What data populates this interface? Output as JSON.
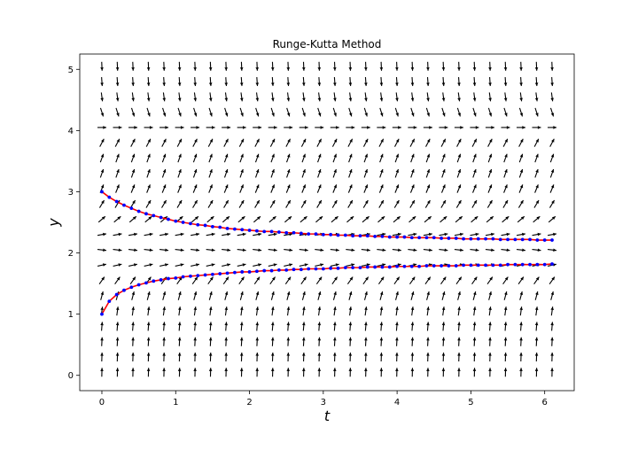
{
  "chart_data": {
    "type": "line",
    "title": "Runge-Kutta Method",
    "xlabel": "t",
    "ylabel": "y",
    "xlim": [
      -0.3,
      6.4
    ],
    "ylim": [
      -0.25,
      5.25
    ],
    "xticks": [
      0,
      1,
      2,
      3,
      4,
      5,
      6
    ],
    "yticks": [
      0,
      1,
      2,
      3,
      4,
      5
    ],
    "grid": false,
    "direction_field": {
      "t_range": [
        0,
        6.1
      ],
      "y_range": [
        0.05,
        5.05
      ],
      "color": "#000000"
    },
    "series": [
      {
        "line_color": "#ff0000",
        "marker_color": "#0000ff",
        "x": [
          0,
          0.1,
          0.2,
          0.3,
          0.4,
          0.5,
          0.6,
          0.7,
          0.8,
          0.9,
          1.0,
          1.1,
          1.2,
          1.3,
          1.4,
          1.5,
          1.6,
          1.7,
          1.8,
          1.9,
          2.0,
          2.1,
          2.2,
          2.3,
          2.4,
          2.5,
          2.6,
          2.7,
          2.8,
          2.9,
          3.0,
          3.1,
          3.2,
          3.3,
          3.4,
          3.5,
          3.6,
          3.7,
          3.8,
          3.9,
          4.0,
          4.1,
          4.2,
          4.3,
          4.4,
          4.5,
          4.6,
          4.7,
          4.8,
          4.9,
          5.0,
          5.1,
          5.2,
          5.3,
          5.4,
          5.5,
          5.6,
          5.7,
          5.8,
          5.9,
          6.0,
          6.1
        ],
        "y": [
          3.0,
          2.91,
          2.84,
          2.78,
          2.73,
          2.68,
          2.64,
          2.61,
          2.58,
          2.55,
          2.52,
          2.5,
          2.48,
          2.46,
          2.45,
          2.43,
          2.42,
          2.4,
          2.39,
          2.38,
          2.37,
          2.36,
          2.35,
          2.35,
          2.34,
          2.33,
          2.33,
          2.32,
          2.31,
          2.31,
          2.3,
          2.3,
          2.29,
          2.29,
          2.28,
          2.28,
          2.28,
          2.27,
          2.27,
          2.26,
          2.26,
          2.26,
          2.25,
          2.25,
          2.25,
          2.25,
          2.24,
          2.24,
          2.24,
          2.23,
          2.23,
          2.23,
          2.23,
          2.23,
          2.22,
          2.22,
          2.22,
          2.22,
          2.22,
          2.21,
          2.21,
          2.21
        ]
      },
      {
        "line_color": "#ff0000",
        "marker_color": "#0000ff",
        "x": [
          0,
          0.1,
          0.2,
          0.3,
          0.4,
          0.5,
          0.6,
          0.7,
          0.8,
          0.9,
          1.0,
          1.1,
          1.2,
          1.3,
          1.4,
          1.5,
          1.6,
          1.7,
          1.8,
          1.9,
          2.0,
          2.1,
          2.2,
          2.3,
          2.4,
          2.5,
          2.6,
          2.7,
          2.8,
          2.9,
          3.0,
          3.1,
          3.2,
          3.3,
          3.4,
          3.5,
          3.6,
          3.7,
          3.8,
          3.9,
          4.0,
          4.1,
          4.2,
          4.3,
          4.4,
          4.5,
          4.6,
          4.7,
          4.8,
          4.9,
          5.0,
          5.1,
          5.2,
          5.3,
          5.4,
          5.5,
          5.6,
          5.7,
          5.8,
          5.9,
          6.0,
          6.1
        ],
        "y": [
          1.0,
          1.21,
          1.32,
          1.39,
          1.44,
          1.48,
          1.51,
          1.54,
          1.56,
          1.58,
          1.59,
          1.61,
          1.62,
          1.63,
          1.64,
          1.65,
          1.66,
          1.67,
          1.68,
          1.69,
          1.69,
          1.7,
          1.71,
          1.71,
          1.72,
          1.72,
          1.73,
          1.73,
          1.74,
          1.74,
          1.74,
          1.75,
          1.75,
          1.76,
          1.76,
          1.76,
          1.77,
          1.77,
          1.77,
          1.77,
          1.78,
          1.78,
          1.78,
          1.78,
          1.79,
          1.79,
          1.79,
          1.79,
          1.79,
          1.8,
          1.8,
          1.8,
          1.8,
          1.8,
          1.8,
          1.81,
          1.81,
          1.81,
          1.81,
          1.81,
          1.81,
          1.82
        ]
      }
    ]
  }
}
